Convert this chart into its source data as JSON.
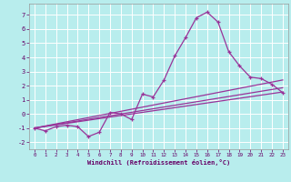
{
  "xlabel": "Windchill (Refroidissement éolien,°C)",
  "bg_color": "#b8eded",
  "grid_color": "#d0f0f0",
  "line_color": "#993399",
  "xlim": [
    -0.5,
    23.5
  ],
  "ylim": [
    -2.5,
    7.8
  ],
  "xticks": [
    0,
    1,
    2,
    3,
    4,
    5,
    6,
    7,
    8,
    9,
    10,
    11,
    12,
    13,
    14,
    15,
    16,
    17,
    18,
    19,
    20,
    21,
    22,
    23
  ],
  "yticks": [
    -2,
    -1,
    0,
    1,
    2,
    3,
    4,
    5,
    6,
    7
  ],
  "curve1_x": [
    0,
    1,
    2,
    3,
    4,
    5,
    6,
    7,
    8,
    9,
    10,
    11,
    12,
    13,
    14,
    15,
    16,
    17,
    18,
    19,
    20,
    21,
    22,
    23
  ],
  "curve1_y": [
    -1.0,
    -1.2,
    -0.9,
    -0.8,
    -0.9,
    -1.6,
    -1.3,
    0.1,
    0.0,
    -0.4,
    1.4,
    1.2,
    2.4,
    4.1,
    5.4,
    6.8,
    7.2,
    6.5,
    4.4,
    3.4,
    2.6,
    2.5,
    2.1,
    1.5
  ],
  "line1_x": [
    0,
    23
  ],
  "line1_y": [
    -1.0,
    1.55
  ],
  "line2_x": [
    0,
    23
  ],
  "line2_y": [
    -1.0,
    1.85
  ],
  "line3_x": [
    0,
    23
  ],
  "line3_y": [
    -1.0,
    2.4
  ]
}
